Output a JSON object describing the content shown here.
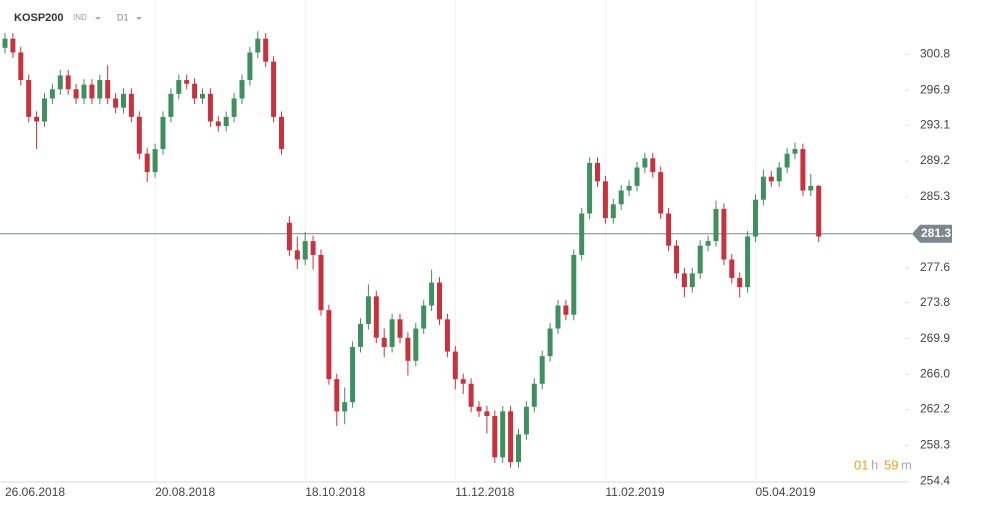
{
  "header": {
    "symbol": "KOSP200",
    "instrument_type": "IND",
    "timeframe": "D1"
  },
  "chart_data": {
    "type": "candlestick",
    "up_color": "#3f8f5f",
    "down_color": "#c8323e",
    "categories": [
      "26.06.2018",
      null,
      null,
      null,
      null,
      null,
      null,
      null,
      null,
      null,
      null,
      null,
      null,
      null,
      null,
      null,
      null,
      null,
      null,
      "20.08.2018",
      null,
      null,
      null,
      null,
      null,
      null,
      null,
      null,
      null,
      null,
      null,
      null,
      null,
      null,
      null,
      null,
      null,
      null,
      "18.10.2018",
      null,
      null,
      null,
      null,
      null,
      null,
      null,
      null,
      null,
      null,
      null,
      null,
      null,
      null,
      null,
      null,
      null,
      null,
      "11.12.2018",
      null,
      null,
      null,
      null,
      null,
      null,
      null,
      null,
      null,
      null,
      null,
      null,
      null,
      null,
      null,
      null,
      null,
      null,
      "11.02.2019",
      null,
      null,
      null,
      null,
      null,
      null,
      null,
      null,
      null,
      null,
      null,
      null,
      null,
      null,
      null,
      null,
      null,
      null,
      "05.04.2019",
      null,
      null,
      null,
      null,
      null,
      null,
      null,
      null
    ],
    "open": [
      301.5,
      302.5,
      301,
      298,
      294,
      293.5,
      296,
      297,
      298.5,
      297,
      296,
      297.5,
      296,
      298,
      296,
      295,
      296.5,
      294,
      290,
      288,
      290.5,
      294,
      296.5,
      298,
      297.6,
      296,
      296.5,
      293.5,
      293,
      294,
      296,
      298,
      301,
      302.5,
      300,
      294,
      282.5,
      279.5,
      278.5,
      280.5,
      279,
      273,
      265.5,
      262,
      263,
      269,
      271.5,
      274.5,
      270,
      269,
      272,
      270,
      267.5,
      271,
      273.5,
      276,
      272,
      268.5,
      265.5,
      265,
      262.5,
      262,
      261.5,
      257,
      262,
      256.5,
      259.5,
      262.5,
      265,
      268,
      271,
      273.5,
      272.5,
      279,
      283.5,
      289,
      287,
      283,
      284.5,
      286,
      286.5,
      288.5,
      289.5,
      288,
      283.5,
      280,
      277,
      275.5,
      277,
      280,
      280.5,
      284,
      278.5,
      276.5,
      275.5,
      281,
      285,
      287.5,
      287,
      288.5,
      290,
      290.5,
      286,
      286.5
    ],
    "high": [
      303.1,
      303.1,
      301.6,
      298.6,
      294.6,
      296.6,
      297.6,
      299.1,
      299.1,
      297.6,
      298.1,
      298.1,
      298.6,
      299.6,
      296.6,
      297.1,
      297.1,
      294.6,
      290.6,
      291.1,
      294.6,
      297.1,
      298.6,
      298.6,
      298.2,
      297.1,
      297.1,
      294.1,
      294.6,
      296.6,
      298.6,
      301.6,
      303.3,
      303.1,
      300.6,
      294.6,
      283.2,
      281,
      281.5,
      281.1,
      279.6,
      273.6,
      266.1,
      264.6,
      269.6,
      272.1,
      275.8,
      275.1,
      271,
      272.6,
      272.6,
      270.6,
      271.6,
      274.1,
      277.4,
      276.6,
      272.6,
      269.1,
      266.1,
      265.6,
      263.1,
      262.6,
      262.1,
      262.6,
      262.6,
      260.1,
      263.1,
      265.6,
      268.6,
      271.6,
      274.1,
      274.1,
      279.6,
      284.1,
      289.6,
      289.6,
      287.6,
      285.1,
      286.6,
      287.1,
      289.1,
      290.1,
      290.1,
      288.6,
      284.1,
      280.6,
      277.6,
      277.6,
      280.6,
      281.1,
      284.9,
      284.6,
      279.1,
      277.1,
      281.6,
      285.6,
      288.3,
      288.1,
      289.1,
      290.6,
      291.2,
      291.1,
      287.8,
      286.6
    ],
    "low": [
      300.9,
      300.4,
      297.4,
      293.4,
      290.5,
      292.9,
      295.4,
      296.4,
      296.4,
      295.4,
      295.4,
      295.4,
      295.4,
      295.4,
      294.4,
      294.4,
      293.4,
      289.4,
      286.9,
      287.4,
      289.9,
      293.4,
      295.9,
      297,
      295.4,
      295.4,
      292.9,
      292.4,
      292.4,
      293.4,
      295.4,
      297.4,
      300.4,
      299.4,
      293.4,
      289.9,
      278.9,
      277.5,
      277.9,
      277.4,
      272.4,
      264.9,
      260.4,
      260.6,
      262.4,
      268.4,
      270.9,
      269.4,
      267.9,
      268.4,
      269.4,
      265.9,
      266.9,
      270.4,
      272.9,
      271.4,
      267.9,
      264.4,
      263.9,
      261.9,
      261.4,
      259.6,
      256.4,
      256.4,
      255.9,
      255.9,
      258.9,
      261.9,
      264.4,
      267.4,
      270.4,
      271.9,
      271.9,
      278.4,
      282.9,
      286.4,
      282.4,
      282.4,
      283.9,
      285.4,
      285.9,
      287.9,
      287.4,
      282.9,
      279.4,
      276.4,
      274.4,
      274.9,
      276.4,
      279.4,
      279.9,
      277.9,
      275.9,
      274.4,
      274.9,
      280.4,
      284.4,
      286.4,
      286.4,
      287.9,
      289.4,
      285.4,
      285.4,
      280.4
    ],
    "close": [
      302.5,
      301,
      298,
      294,
      293.5,
      296,
      297,
      298.5,
      297,
      296,
      297.5,
      296,
      298,
      296,
      295,
      296.5,
      294,
      290,
      288,
      290.5,
      294,
      296.5,
      298,
      297.6,
      296,
      296.5,
      293.5,
      293,
      294,
      296,
      298,
      301,
      302.5,
      300,
      294,
      290.5,
      279.5,
      278.5,
      280.5,
      279,
      273,
      265.5,
      262,
      263,
      269,
      271.5,
      274.5,
      270,
      269,
      272,
      270,
      267.5,
      271,
      273.5,
      276,
      272,
      268.5,
      265.5,
      265,
      262.5,
      262,
      261.5,
      257,
      262,
      256.5,
      259.5,
      262.5,
      265,
      268,
      271,
      273.5,
      272.5,
      279,
      283.5,
      289,
      287,
      283,
      284.5,
      286,
      286.5,
      288.5,
      289.5,
      288,
      283.5,
      280,
      277,
      275.5,
      277,
      280,
      280.5,
      284,
      278.5,
      276.5,
      275.5,
      281,
      285,
      287.5,
      287,
      288.5,
      290,
      290.5,
      286,
      286.5,
      281
    ],
    "ylim": [
      254.0,
      306.7
    ],
    "yticks": [
      300.8,
      296.9,
      293.1,
      289.2,
      285.3,
      277.6,
      273.8,
      269.9,
      {
        "value": 266,
        "label": "266.0"
      },
      262.2,
      258.3,
      254.4
    ],
    "current_price": 281.3,
    "current_price_color": "#7d8790"
  },
  "timer": {
    "hours": "01",
    "hours_unit": "h",
    "minutes": "59",
    "minutes_unit": "m"
  }
}
